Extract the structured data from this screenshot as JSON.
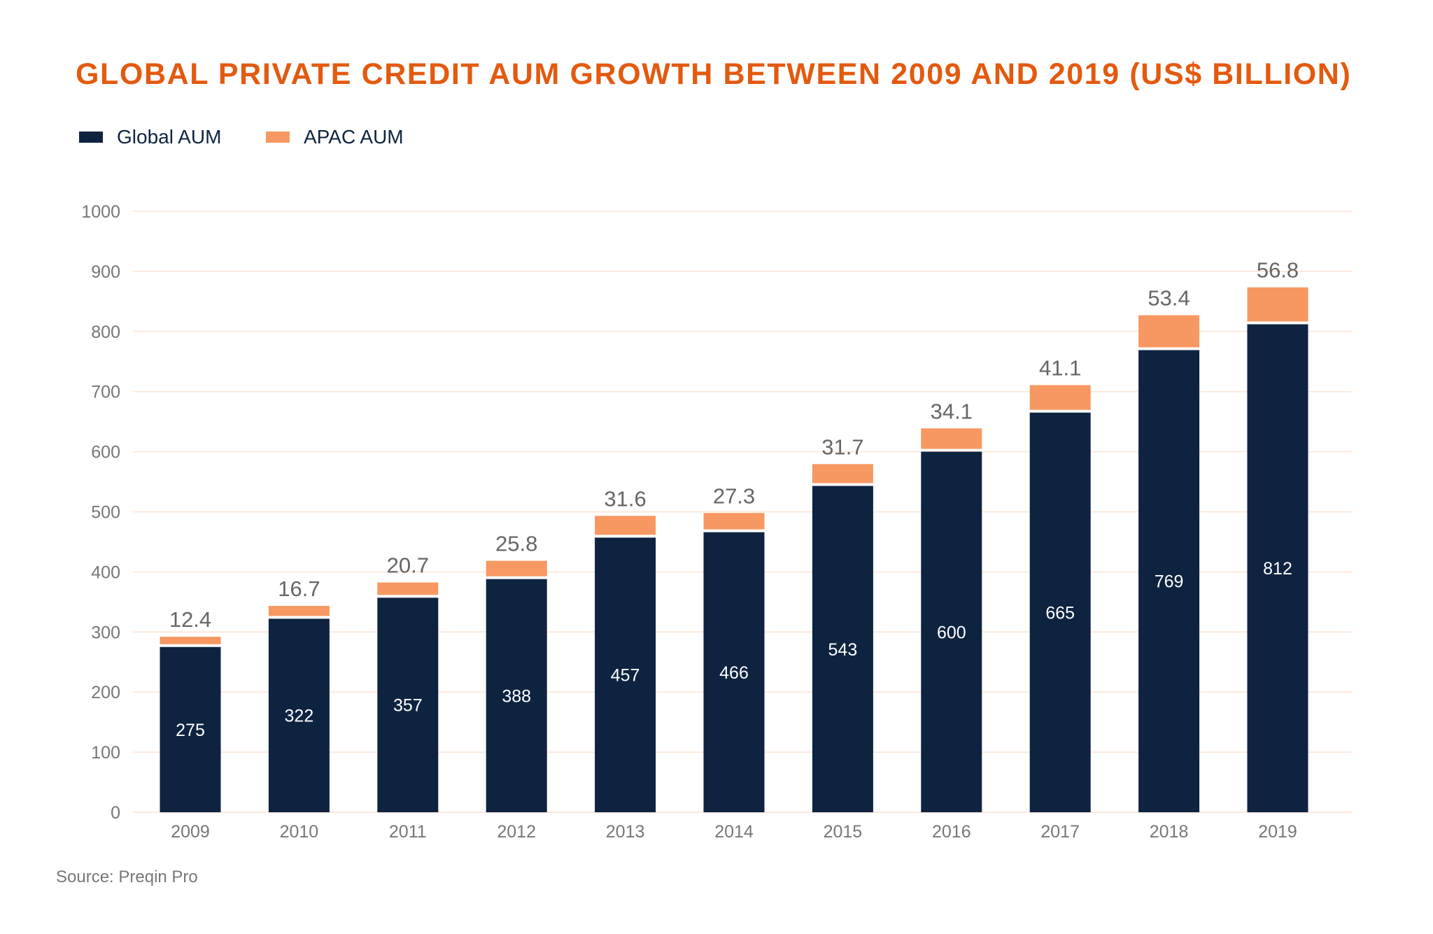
{
  "chart_data": {
    "type": "bar",
    "stacked": true,
    "title": "GLOBAL PRIVATE CREDIT AUM GROWTH BETWEEN 2009 AND 2019 (US$ BILLION)",
    "xlabel": "",
    "ylabel": "",
    "categories": [
      "2009",
      "2010",
      "2011",
      "2012",
      "2013",
      "2014",
      "2015",
      "2016",
      "2017",
      "2018",
      "2019"
    ],
    "series": [
      {
        "name": "Global AUM",
        "color": "#0e2340",
        "values": [
          275,
          322,
          357,
          388,
          457,
          466,
          543,
          600,
          665,
          769,
          812
        ]
      },
      {
        "name": "APAC AUM",
        "color": "#f79862",
        "values": [
          12.4,
          16.7,
          20.7,
          25.8,
          31.6,
          27.3,
          31.7,
          34.1,
          41.1,
          53.4,
          56.8
        ]
      }
    ],
    "ylim": [
      0,
      1000
    ],
    "yticks": [
      0,
      100,
      200,
      300,
      400,
      500,
      600,
      700,
      800,
      900,
      1000
    ],
    "grid": true,
    "gridColor": "#fde9de",
    "legend": "top-left",
    "titleColor": "#e35a0f"
  },
  "source": "Source: Preqin Pro"
}
